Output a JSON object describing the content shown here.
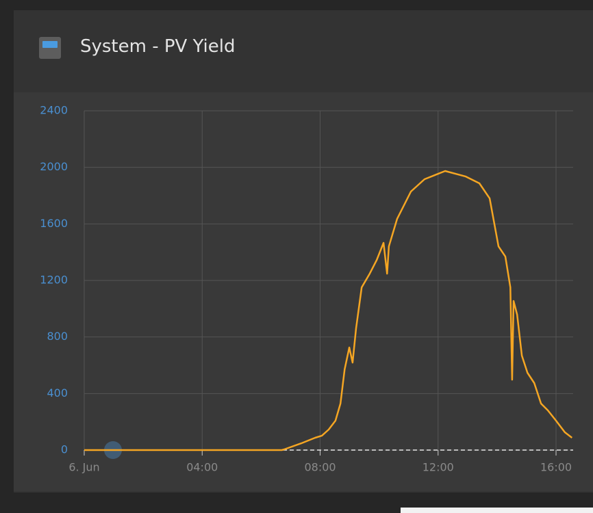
{
  "header": {
    "title": "System - PV Yield"
  },
  "chart_data": {
    "type": "line",
    "x": [
      0,
      6.7,
      6.78,
      7.36,
      7.83,
      8.06,
      8.29,
      8.52,
      8.69,
      8.83,
      8.99,
      9.1,
      9.22,
      9.41,
      9.68,
      9.92,
      10.15,
      10.27,
      10.33,
      10.61,
      11.08,
      11.54,
      12.24,
      12.94,
      13.4,
      13.75,
      14.05,
      14.28,
      14.45,
      14.51,
      14.56,
      14.68,
      14.84,
      15.03,
      15.26,
      15.49,
      15.72,
      16.0,
      16.3,
      16.54
    ],
    "series": [
      {
        "name": "PV Yield",
        "color": "#f5a623",
        "values": [
          0,
          0,
          5,
          48,
          87,
          102,
          145,
          208,
          329,
          571,
          726,
          619,
          861,
          1151,
          1248,
          1345,
          1466,
          1248,
          1441,
          1635,
          1829,
          1916,
          1974,
          1935,
          1887,
          1780,
          1441,
          1369,
          1151,
          498,
          1055,
          958,
          668,
          547,
          474,
          329,
          281,
          208,
          126,
          87
        ]
      }
    ],
    "xlim": [
      0,
      16.58
    ],
    "xticks": [
      {
        "value": 0,
        "label": "6. Jun"
      },
      {
        "value": 4,
        "label": "04:00"
      },
      {
        "value": 8,
        "label": "08:00"
      },
      {
        "value": 12,
        "label": "12:00"
      },
      {
        "value": 16,
        "label": "16:00"
      }
    ],
    "ylim": [
      0,
      2400
    ],
    "yticks": [
      0,
      400,
      800,
      1200,
      1600,
      2000,
      2400
    ],
    "grid": true
  }
}
